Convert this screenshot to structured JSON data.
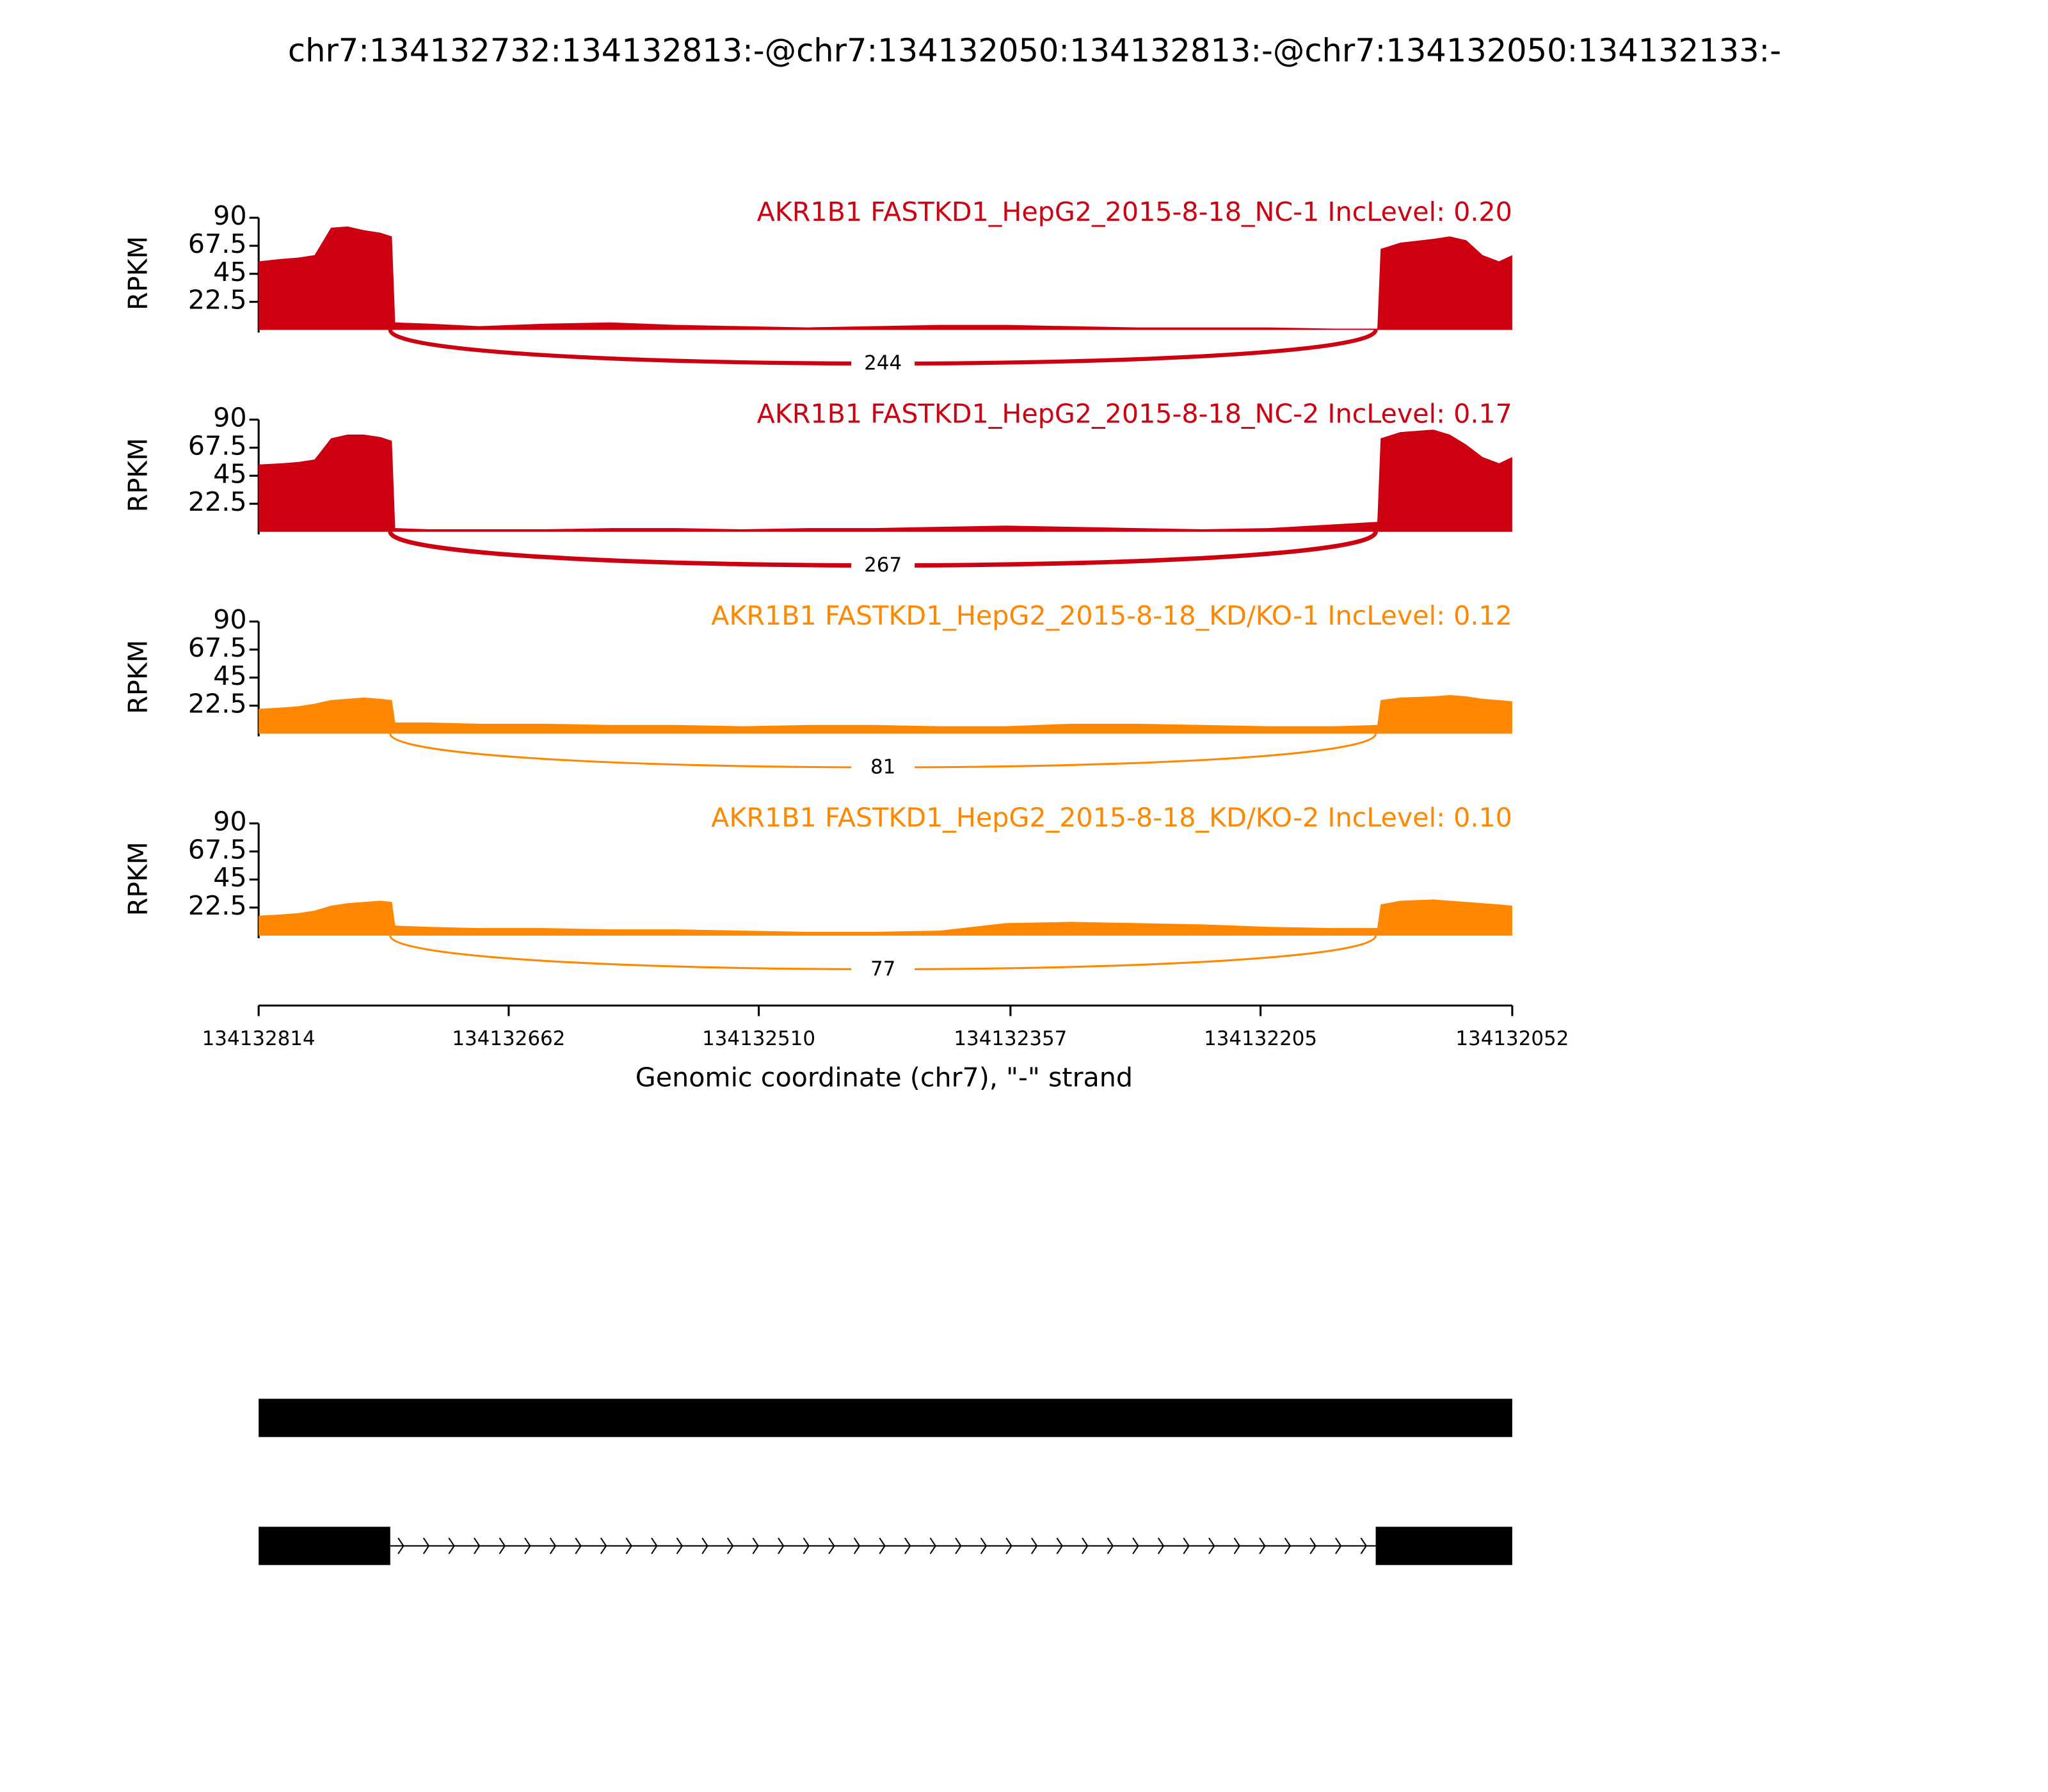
{
  "chart_data": {
    "type": "area",
    "title": "chr7:134132732:134132813:-@chr7:134132050:134132813:-@chr7:134132050:134132133:-",
    "x": [
      134132814,
      134132800,
      134132790,
      134132780,
      134132770,
      134132760,
      134132750,
      134132740,
      134132733,
      134132731,
      134132710,
      134132680,
      134132640,
      134132600,
      134132560,
      134132520,
      134132480,
      134132440,
      134132400,
      134132360,
      134132320,
      134132280,
      134132240,
      134132200,
      134132160,
      134132134,
      134132132,
      134132120,
      134132100,
      134132090,
      134132080,
      134132070,
      134132060,
      134132052
    ],
    "xlim": [
      134132814,
      134132052
    ],
    "xticks": [
      134132814,
      134132662,
      134132510,
      134132357,
      134132205,
      134132052
    ],
    "xlabel": "Genomic coordinate (chr7), \"-\" strand",
    "ylim": [
      0,
      90
    ],
    "yticks": [
      22.5,
      45,
      67.5,
      90
    ],
    "ylabel": "RPKM",
    "series": [
      {
        "name": "AKR1B1 FASTKD1_HepG2_2015-8-18_NC-1 IncLevel: 0.20",
        "color": "#cc0011",
        "junction": 244,
        "values": [
          55,
          57,
          58,
          60,
          82,
          83,
          80,
          78,
          75,
          6,
          5,
          3,
          5,
          6,
          4,
          3,
          2,
          3,
          4,
          4,
          3,
          2,
          2,
          2,
          1,
          1,
          65,
          70,
          73,
          75,
          72,
          60,
          55,
          60
        ]
      },
      {
        "name": "AKR1B1 FASTKD1_HepG2_2015-8-18_NC-2 IncLevel: 0.17",
        "color": "#cc0011",
        "junction": 267,
        "values": [
          54,
          55,
          56,
          58,
          75,
          78,
          78,
          76,
          73,
          3,
          2,
          2,
          2,
          3,
          3,
          2,
          3,
          3,
          4,
          5,
          4,
          3,
          2,
          3,
          6,
          8,
          75,
          80,
          82,
          78,
          70,
          60,
          55,
          60
        ]
      },
      {
        "name": "AKR1B1 FASTKD1_HepG2_2015-8-18_KD/KO-1 IncLevel: 0.12",
        "color": "#ff8800",
        "junction": 81,
        "values": [
          20,
          21,
          22,
          24,
          27,
          28,
          29,
          28,
          27,
          9,
          9,
          8,
          8,
          7,
          7,
          6,
          7,
          7,
          6,
          6,
          8,
          8,
          7,
          6,
          6,
          7,
          27,
          29,
          30,
          31,
          30,
          28,
          27,
          26
        ]
      },
      {
        "name": "AKR1B1 FASTKD1_HepG2_2015-8-18_KD/KO-2 IncLevel: 0.10",
        "color": "#ff8800",
        "junction": 77,
        "values": [
          16,
          17,
          18,
          20,
          24,
          26,
          27,
          28,
          27,
          8,
          7,
          6,
          6,
          5,
          5,
          4,
          3,
          3,
          4,
          10,
          11,
          10,
          9,
          7,
          6,
          6,
          25,
          28,
          29,
          28,
          27,
          26,
          25,
          24
        ]
      }
    ],
    "transcripts": [
      {
        "exons": [
          [
            134132814,
            134132052
          ]
        ]
      },
      {
        "exons": [
          [
            134132814,
            134132734
          ],
          [
            134132135,
            134132052
          ]
        ]
      }
    ]
  }
}
